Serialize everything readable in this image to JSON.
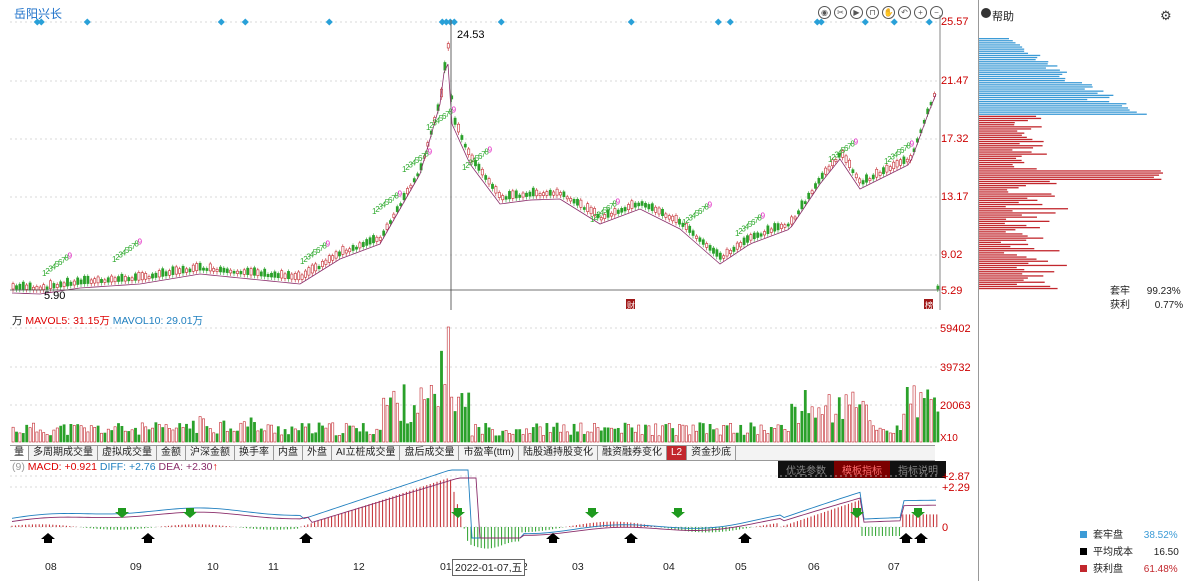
{
  "stock": {
    "name": "岳阳兴长"
  },
  "toolbar_icons": [
    "eye-icon",
    "scissors-icon",
    "play-icon",
    "lock-icon",
    "hand-icon",
    "undo-icon",
    "zoom-in-icon",
    "zoom-out-icon"
  ],
  "price_axis": [
    "25.57",
    "21.47",
    "17.32",
    "13.17",
    "9.02",
    "5.29"
  ],
  "price_annotations": {
    "high": "24.53",
    "low": "5.90"
  },
  "event_marks": [
    "财",
    "榜"
  ],
  "volume": {
    "unit_prefix": "万",
    "mavol5": "MAVOL5: 31.15万",
    "mavol10": "MAVOL10: 29.01万",
    "axis": [
      "59402",
      "39732",
      "20063"
    ],
    "scale_label": "X10"
  },
  "indicator_tabs": [
    "量",
    "多周期成交量",
    "虚拟成交量",
    "金额",
    "沪深金额",
    "换手率",
    "内盘",
    "外盘",
    "AI立桩成交量",
    "盘后成交量",
    "市盈率(ttm)",
    "陆股通持股变化",
    "融资融券变化",
    "资金抄底"
  ],
  "indicator_tab_badge": "L2",
  "macd": {
    "params": "(9)",
    "macd": "MACD: +0.921",
    "diff": "DIFF: +2.76",
    "dea": "DEA: +2.30",
    "dea_arrow": "↑",
    "axis": [
      "+2.87",
      "+2.29",
      "0"
    ],
    "buttons": [
      "优选参数",
      "模板指标",
      "指标说明"
    ]
  },
  "x_axis": [
    "08",
    "09",
    "10",
    "11",
    "12",
    "01",
    "02",
    "03",
    "04",
    "05",
    "06",
    "07"
  ],
  "cursor_date": "2022-01-07,五",
  "right_panel": {
    "help": "帮助",
    "trapped_label": "套牢",
    "trapped_value": "99.23%",
    "profit_label": "获利",
    "profit_value": "0.77%",
    "legend": [
      {
        "label": "套牢盘",
        "value": "38.52%",
        "color": "#3c9bd6"
      },
      {
        "label": "平均成本",
        "value": "16.50",
        "color": "#000000"
      },
      {
        "label": "获利盘",
        "value": "61.48%",
        "color": "#c2272d"
      }
    ]
  },
  "colors": {
    "up": "#c2272d",
    "down": "#2aa12a",
    "diff": "#1f7fbf",
    "dea": "#8a2d6a",
    "accent": "#3c9bd6"
  }
}
